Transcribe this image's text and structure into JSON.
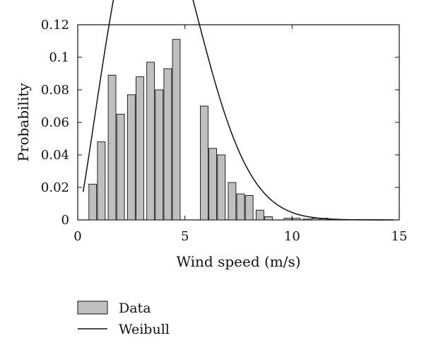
{
  "chart_data": {
    "type": "bar",
    "xlabel": "Wind speed (m/s)",
    "ylabel": "Probability",
    "xlim": [
      0,
      15
    ],
    "ylim": [
      0,
      0.12
    ],
    "xticks": [
      0,
      5,
      10,
      15
    ],
    "xtick_labels": [
      "0",
      "5",
      "10",
      "15"
    ],
    "yticks": [
      0,
      0.02,
      0.04,
      0.06,
      0.08,
      0.1,
      0.12
    ],
    "ytick_labels": [
      "0",
      "0.02",
      "0.04",
      "0.06",
      "0.08",
      "0.1",
      "0.12"
    ],
    "grid": false,
    "legend_position": "bottom-left",
    "bar_width": 0.36,
    "bar_color": "#bfbfbf",
    "line_color": "#111111",
    "series": [
      {
        "name": "Data",
        "type": "bar",
        "x": [
          0.7,
          1.1,
          1.6,
          2.0,
          2.5,
          2.9,
          3.4,
          3.8,
          4.2,
          4.6,
          5.0,
          5.9,
          6.3,
          6.7,
          7.2,
          7.6,
          8.0,
          8.5,
          8.9,
          9.8,
          10.2,
          10.7,
          11.1,
          11.5,
          12.0,
          12.4,
          12.8,
          13.3,
          13.7,
          14.1
        ],
        "values": [
          0.022,
          0.048,
          0.089,
          0.065,
          0.077,
          0.088,
          0.097,
          0.08,
          0.093,
          0.111,
          0.0,
          0.07,
          0.044,
          0.04,
          0.023,
          0.016,
          0.015,
          0.006,
          0.002,
          0.001,
          0.001,
          0.0005,
          0.001,
          0.001,
          0.0003,
          0.0002,
          0.0002,
          0.0002,
          0.0001,
          0.0001
        ]
      },
      {
        "name": "Weibull",
        "type": "line",
        "k": 2.15,
        "c": 4.5
      }
    ],
    "legend": [
      {
        "label": "Data",
        "kind": "bar"
      },
      {
        "label": "Weibull",
        "kind": "line"
      }
    ]
  }
}
